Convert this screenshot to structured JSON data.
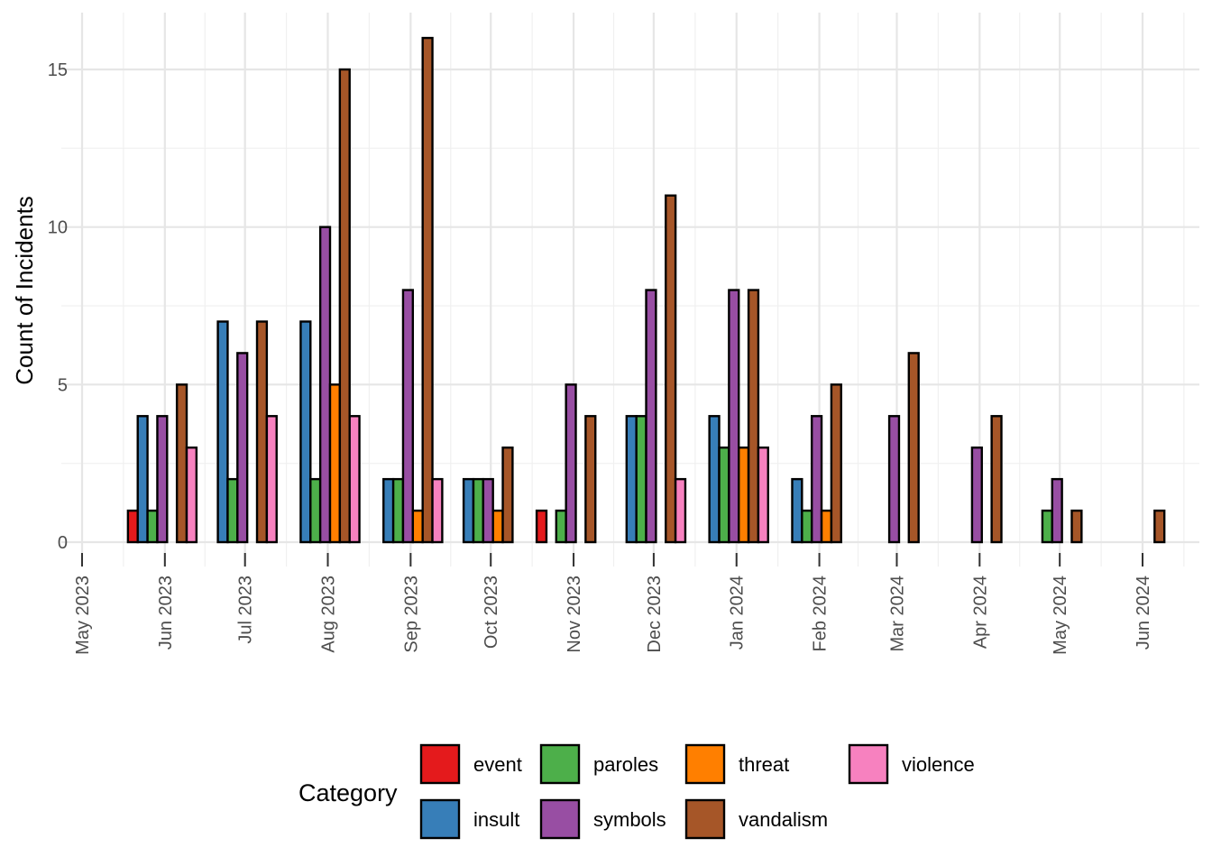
{
  "chart_data": {
    "type": "bar",
    "title": "",
    "xlabel": "",
    "ylabel": "Count of Incidents",
    "ylim": [
      -1.4,
      16.6
    ],
    "yticks": [
      0,
      5,
      10,
      15
    ],
    "grid": true,
    "legend_title": "Category",
    "legend_position": "bottom",
    "x_ticks": [
      "May 2023",
      "Jun 2023",
      "Jul 2023",
      "Aug 2023",
      "Sep 2023",
      "Oct 2023",
      "Nov 2023",
      "Dec 2023",
      "Jan 2024",
      "Feb 2024",
      "Mar 2024",
      "Apr 2024",
      "May 2024",
      "Jun 2024"
    ],
    "x_tick_dates": [
      "2023-05-01",
      "2023-06-01",
      "2023-07-01",
      "2023-08-01",
      "2023-09-01",
      "2023-10-01",
      "2023-11-01",
      "2023-12-01",
      "2024-01-01",
      "2024-02-01",
      "2024-03-01",
      "2024-04-01",
      "2024-05-01",
      "2024-06-01"
    ],
    "series": [
      {
        "name": "event",
        "color": "#E41A1C"
      },
      {
        "name": "insult",
        "color": "#377EB8"
      },
      {
        "name": "paroles",
        "color": "#4DAF4A"
      },
      {
        "name": "symbols",
        "color": "#984EA3"
      },
      {
        "name": "threat",
        "color": "#FF7F00"
      },
      {
        "name": "vandalism",
        "color": "#A65628"
      },
      {
        "name": "violence",
        "color": "#F781BF"
      }
    ],
    "groups": [
      {
        "date": "2023-05-31",
        "values": {
          "event": 1,
          "insult": 4,
          "paroles": 1,
          "symbols": 4,
          "vandalism": 5,
          "violence": 3
        }
      },
      {
        "date": "2023-06-30",
        "values": {
          "insult": 7,
          "paroles": 2,
          "symbols": 6,
          "vandalism": 7,
          "violence": 4
        }
      },
      {
        "date": "2023-07-31",
        "values": {
          "insult": 7,
          "paroles": 2,
          "symbols": 10,
          "threat": 5,
          "vandalism": 15,
          "violence": 4
        }
      },
      {
        "date": "2023-08-31",
        "values": {
          "insult": 2,
          "paroles": 2,
          "symbols": 8,
          "threat": 1,
          "vandalism": 16,
          "violence": 2
        }
      },
      {
        "date": "2023-09-30",
        "values": {
          "insult": 2,
          "paroles": 2,
          "symbols": 2,
          "threat": 1,
          "vandalism": 3
        }
      },
      {
        "date": "2023-10-31",
        "values": {
          "event": 1,
          "paroles": 1,
          "symbols": 5,
          "vandalism": 4
        }
      },
      {
        "date": "2023-11-30",
        "values": {
          "insult": 4,
          "paroles": 4,
          "symbols": 8,
          "vandalism": 11,
          "violence": 2
        }
      },
      {
        "date": "2023-12-31",
        "values": {
          "insult": 4,
          "paroles": 3,
          "symbols": 8,
          "threat": 3,
          "vandalism": 8,
          "violence": 3
        }
      },
      {
        "date": "2024-01-31",
        "values": {
          "insult": 2,
          "paroles": 1,
          "symbols": 4,
          "threat": 1,
          "vandalism": 5
        }
      },
      {
        "date": "2024-02-29",
        "values": {
          "symbols": 4,
          "vandalism": 6
        }
      },
      {
        "date": "2024-03-31",
        "values": {
          "symbols": 3,
          "vandalism": 4
        }
      },
      {
        "date": "2024-04-30",
        "values": {
          "paroles": 1,
          "symbols": 2,
          "vandalism": 1
        }
      },
      {
        "date": "2024-05-31",
        "values": {
          "vandalism": 1
        }
      }
    ]
  }
}
